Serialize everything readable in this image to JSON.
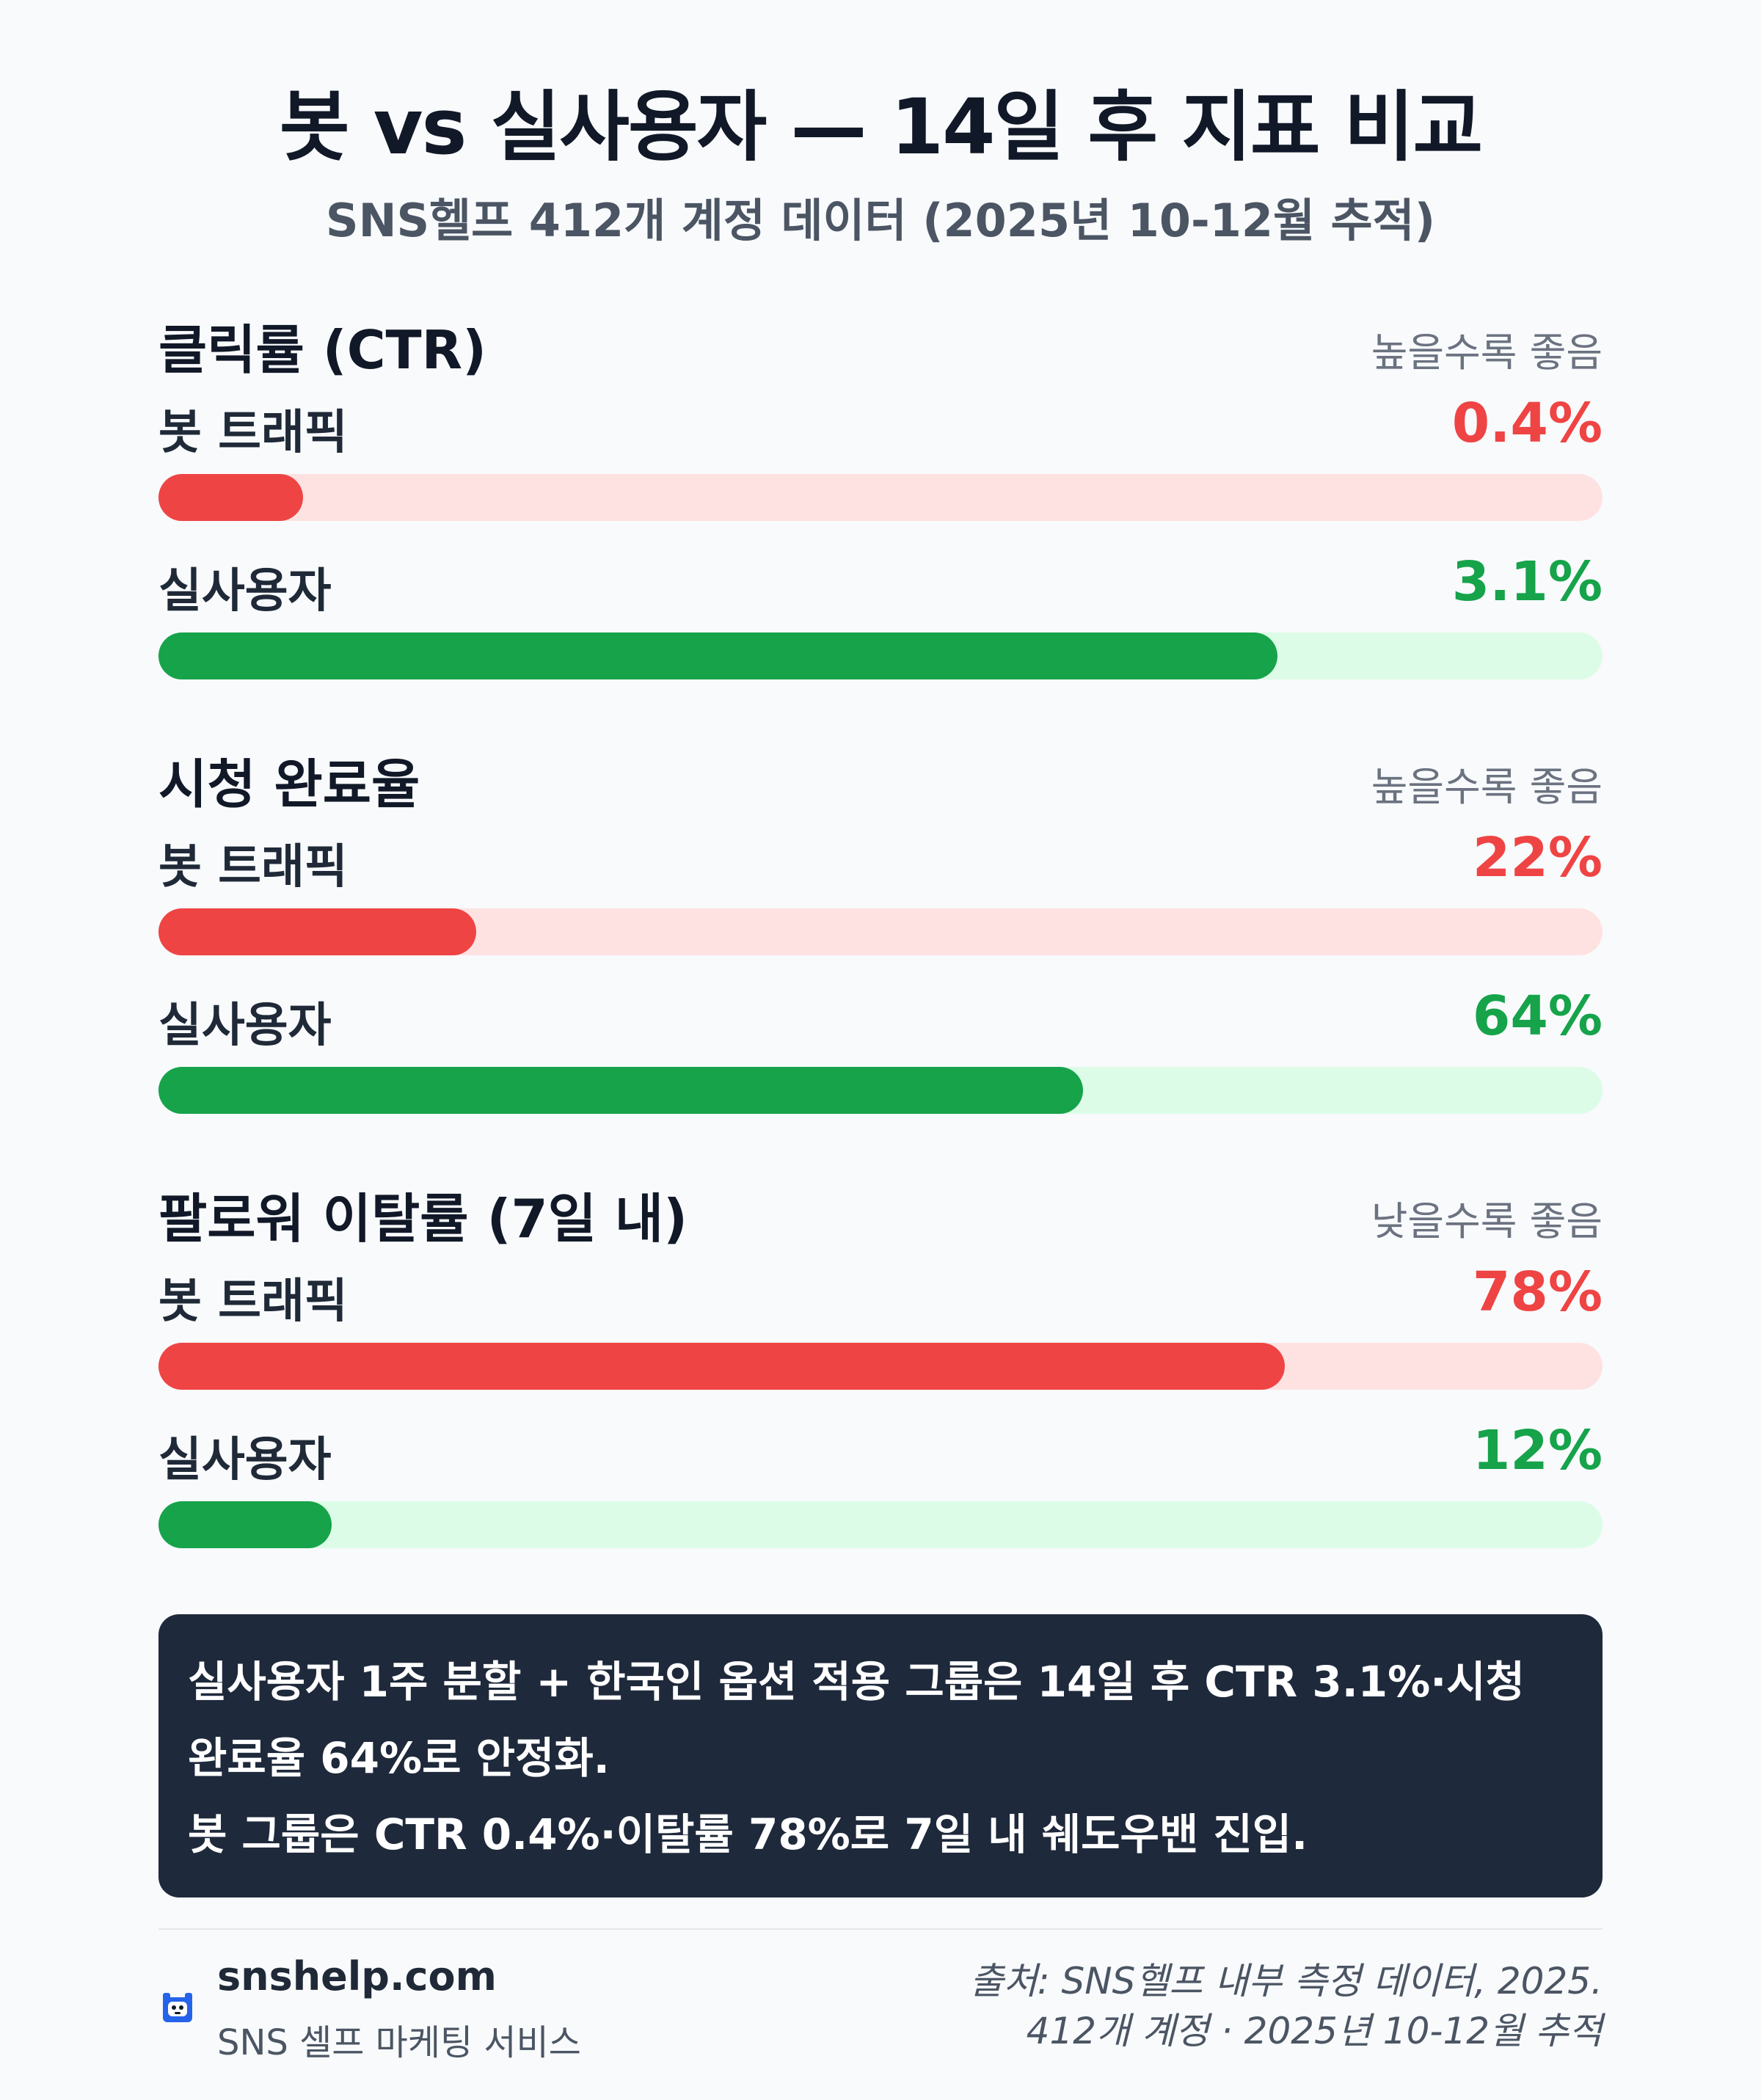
{
  "title": "봇 vs 실사용자 — 14일 후 지표 비교",
  "subtitle": "SNS헬프 412개 계정 데이터 (2025년 10-12월 추적)",
  "chart_data": [
    {
      "type": "bar",
      "title": "클릭률 (CTR)",
      "hint": "높을수록 좋음",
      "categories": [
        "봇 트래픽",
        "실사용자"
      ],
      "values": [
        0.4,
        3.1
      ],
      "value_labels": [
        "0.4%",
        "3.1%"
      ],
      "xlim": [
        0,
        4
      ],
      "colors": [
        "#ef4444",
        "#16a34a"
      ]
    },
    {
      "type": "bar",
      "title": "시청 완료율",
      "hint": "높을수록 좋음",
      "categories": [
        "봇 트래픽",
        "실사용자"
      ],
      "values": [
        22,
        64
      ],
      "value_labels": [
        "22%",
        "64%"
      ],
      "xlim": [
        0,
        100
      ],
      "colors": [
        "#ef4444",
        "#16a34a"
      ]
    },
    {
      "type": "bar",
      "title": "팔로워 이탈률 (7일 내)",
      "hint": "낮을수록 좋음",
      "categories": [
        "봇 트래픽",
        "실사용자"
      ],
      "values": [
        78,
        12
      ],
      "value_labels": [
        "78%",
        "12%"
      ],
      "xlim": [
        0,
        100
      ],
      "colors": [
        "#ef4444",
        "#16a34a"
      ]
    }
  ],
  "summary": {
    "line1": "실사용자 1주 분할 + 한국인 옵션 적용 그룹은 14일 후 CTR 3.1%·시청",
    "line2": "완료율 64%로 안정화.",
    "line3": "봇 그룹은 CTR 0.4%·이탈률 78%로 7일 내 쉐도우밴 진입."
  },
  "footer": {
    "brand_name": "snshelp.com",
    "brand_tagline": "SNS 셀프 마케팅 서비스",
    "brand_icon": "mascot-icon",
    "source_line1": "출처: SNS헬프 내부 측정 데이터, 2025.",
    "source_line2": "412개 계정 · 2025년 10-12월 추적"
  }
}
